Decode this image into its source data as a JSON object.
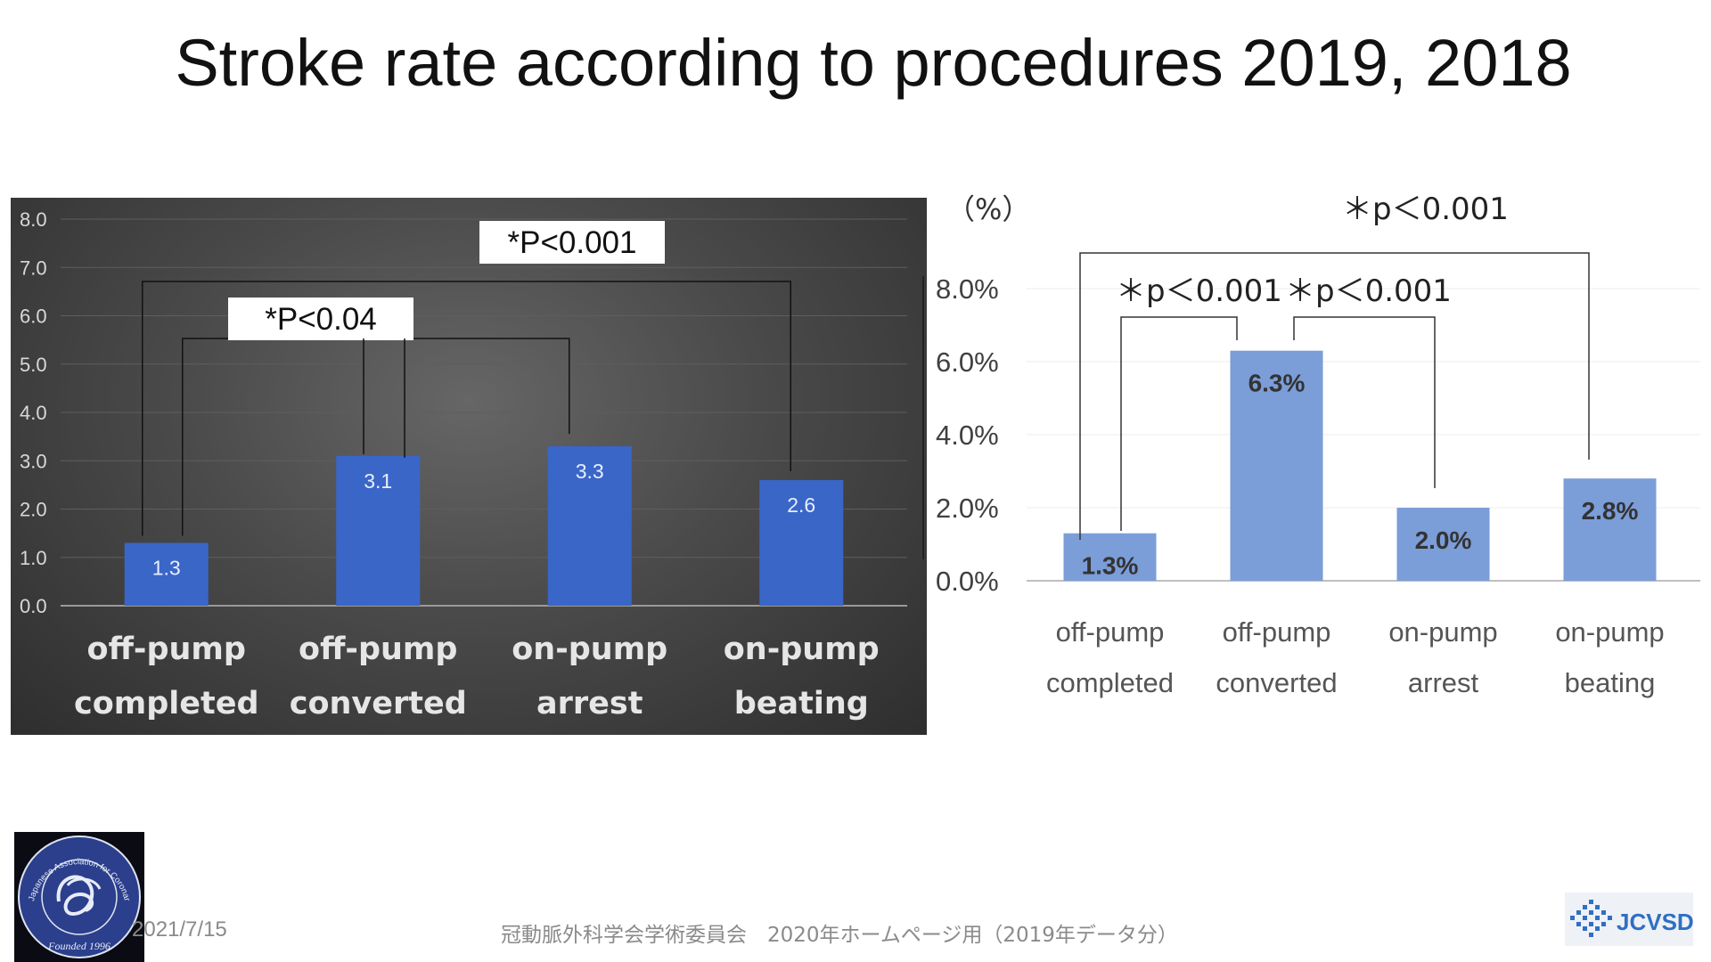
{
  "slide": {
    "title": "Stroke rate according to procedures 2019, 2018",
    "footer_date": "2021/7/15",
    "footer_center": "冠動脈外科学会学術委員会　2020年ホームページ用（2019年データ分）"
  },
  "logos": {
    "seal_text_top": "Japanese Association for Coronary Artery Surgery",
    "seal_text_bottom": "Founded 1996",
    "jcvsd_text": "JCVSD"
  },
  "chart_data": [
    {
      "type": "bar",
      "categories": [
        [
          "off-pump",
          "completed"
        ],
        [
          "off-pump",
          "converted"
        ],
        [
          "on-pump",
          "arrest"
        ],
        [
          "on-pump",
          "beating"
        ]
      ],
      "values": [
        1.3,
        3.1,
        3.3,
        2.6
      ],
      "value_labels": [
        "1.3",
        "3.1",
        "3.3",
        "2.6"
      ],
      "ylim": [
        0,
        8
      ],
      "yticks": [
        "0.0",
        "1.0",
        "2.0",
        "3.0",
        "4.0",
        "5.0",
        "6.0",
        "7.0",
        "8.0"
      ],
      "grid": true,
      "colors": {
        "bar": "#3a66c8",
        "background": "#4a4a4a"
      },
      "annotations": [
        {
          "text": "*P<0.001",
          "from": 0,
          "to": 3
        },
        {
          "text": "*P<0.04",
          "from": 0,
          "to": 2
        }
      ]
    },
    {
      "type": "bar",
      "unit_label": "（%）",
      "categories": [
        [
          "off-pump",
          "completed"
        ],
        [
          "off-pump",
          "converted"
        ],
        [
          "on-pump",
          "arrest"
        ],
        [
          "on-pump",
          "beating"
        ]
      ],
      "values": [
        1.3,
        6.3,
        2.0,
        2.8
      ],
      "value_labels": [
        "1.3%",
        "6.3%",
        "2.0%",
        "2.8%"
      ],
      "ylim": [
        0,
        8
      ],
      "yticks": [
        "0.0%",
        "2.0%",
        "4.0%",
        "6.0%",
        "8.0%"
      ],
      "grid": true,
      "colors": {
        "bar": "#7b9dd8"
      },
      "annotations": [
        {
          "text": "＊p＜0.001",
          "from": 0,
          "to": 3
        },
        {
          "text": "＊p＜0.001",
          "from": 0,
          "to": 1
        },
        {
          "text": "＊p＜0.001",
          "from": 1,
          "to": 2
        }
      ]
    }
  ]
}
